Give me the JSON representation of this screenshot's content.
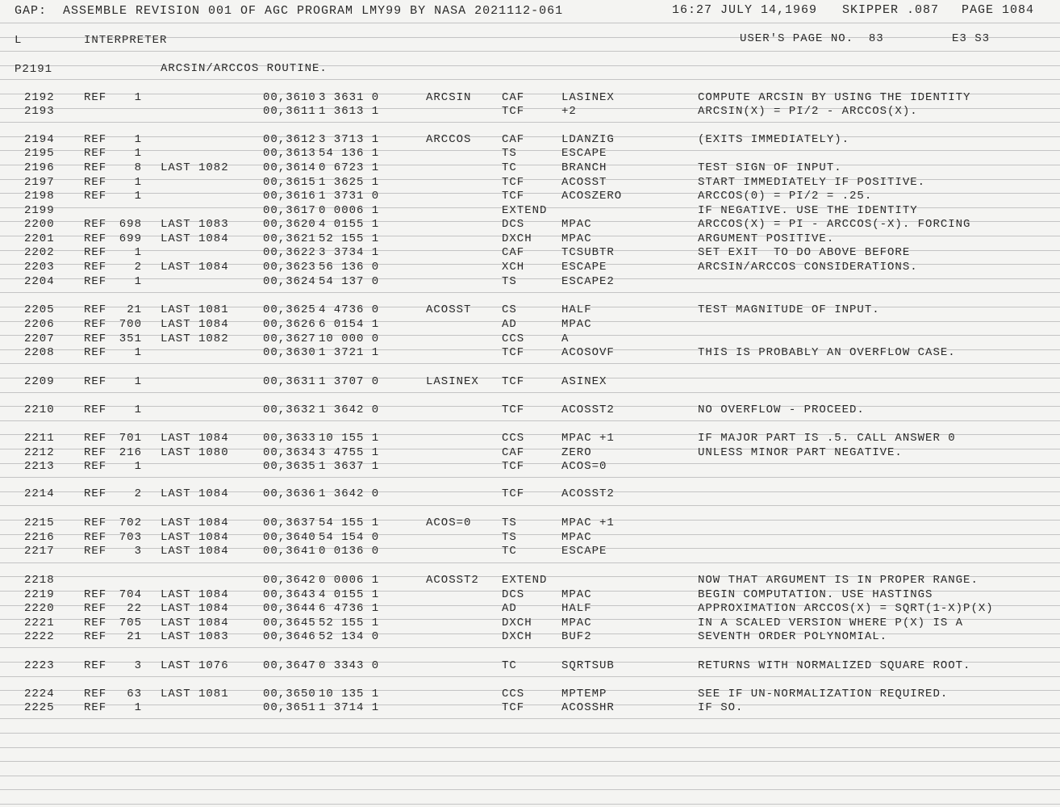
{
  "header": {
    "assembly": "GAP:  ASSEMBLE REVISION 001 OF AGC PROGRAM LMY99 BY NASA 2021112-061",
    "datetime": "16:27 JULY 14,1969",
    "skipper": "SKIPPER .087",
    "page": "PAGE 1084",
    "log_letter": "L",
    "section": "INTERPRETER",
    "users_page": "USER'S PAGE NO.  83",
    "e_s": "E3 S3",
    "page_line": "P2191",
    "routine_title": "ARCSIN/ARCCOS ROUTINE."
  },
  "rows": [
    [
      "2192",
      "REF",
      "1",
      "",
      "00,3610",
      "3 3631 0",
      "ARCSIN",
      "CAF",
      "LASINEX",
      "COMPUTE ARCSIN BY USING THE IDENTITY"
    ],
    [
      "2193",
      "",
      "",
      "",
      "00,3611",
      "1 3613 1",
      "",
      "TCF",
      "+2",
      "ARCSIN(X) = PI/2 - ARCCOS(X)."
    ],
    [
      "2194",
      "REF",
      "1",
      "",
      "00,3612",
      "3 3713 1",
      "ARCCOS",
      "CAF",
      "LDANZIG",
      "(EXITS IMMEDIATELY)."
    ],
    [
      "2195",
      "REF",
      "1",
      "",
      "00,3613",
      "54 136 1",
      "",
      "TS",
      "ESCAPE",
      ""
    ],
    [
      "2196",
      "REF",
      "8",
      "LAST 1082",
      "00,3614",
      "0 6723 1",
      "",
      "TC",
      "BRANCH",
      "TEST SIGN OF INPUT."
    ],
    [
      "2197",
      "REF",
      "1",
      "",
      "00,3615",
      "1 3625 1",
      "",
      "TCF",
      "ACOSST",
      "START IMMEDIATELY IF POSITIVE."
    ],
    [
      "2198",
      "REF",
      "1",
      "",
      "00,3616",
      "1 3731 0",
      "",
      "TCF",
      "ACOSZERO",
      "ARCCOS(0) = PI/2 = .25."
    ],
    [
      "2199",
      "",
      "",
      "",
      "00,3617",
      "0 0006 1",
      "",
      "EXTEND",
      "",
      "IF NEGATIVE. USE THE IDENTITY"
    ],
    [
      "2200",
      "REF",
      "698",
      "LAST 1083",
      "00,3620",
      "4 0155 1",
      "",
      "DCS",
      "MPAC",
      "ARCCOS(X) = PI - ARCCOS(-X). FORCING"
    ],
    [
      "2201",
      "REF",
      "699",
      "LAST 1084",
      "00,3621",
      "52 155 1",
      "",
      "DXCH",
      "MPAC",
      "ARGUMENT POSITIVE."
    ],
    [
      "2202",
      "REF",
      "1",
      "",
      "00,3622",
      "3 3734 1",
      "",
      "CAF",
      "TCSUBTR",
      "SET EXIT  TO DO ABOVE BEFORE"
    ],
    [
      "2203",
      "REF",
      "2",
      "LAST 1084",
      "00,3623",
      "56 136 0",
      "",
      "XCH",
      "ESCAPE",
      "ARCSIN/ARCCOS CONSIDERATIONS."
    ],
    [
      "2204",
      "REF",
      "1",
      "",
      "00,3624",
      "54 137 0",
      "",
      "TS",
      "ESCAPE2",
      ""
    ],
    [
      "2205",
      "REF",
      "21",
      "LAST 1081",
      "00,3625",
      "4 4736 0",
      "ACOSST",
      "CS",
      "HALF",
      "TEST MAGNITUDE OF INPUT."
    ],
    [
      "2206",
      "REF",
      "700",
      "LAST 1084",
      "00,3626",
      "6 0154 1",
      "",
      "AD",
      "MPAC",
      ""
    ],
    [
      "2207",
      "REF",
      "351",
      "LAST 1082",
      "00,3627",
      "10 000 0",
      "",
      "CCS",
      "A",
      ""
    ],
    [
      "2208",
      "REF",
      "1",
      "",
      "00,3630",
      "1 3721 1",
      "",
      "TCF",
      "ACOSOVF",
      "THIS IS PROBABLY AN OVERFLOW CASE."
    ],
    [
      "2209",
      "REF",
      "1",
      "",
      "00,3631",
      "1 3707 0",
      "LASINEX",
      "TCF",
      "ASINEX",
      ""
    ],
    [
      "2210",
      "REF",
      "1",
      "",
      "00,3632",
      "1 3642 0",
      "",
      "TCF",
      "ACOSST2",
      "NO OVERFLOW - PROCEED."
    ],
    [
      "2211",
      "REF",
      "701",
      "LAST 1084",
      "00,3633",
      "10 155 1",
      "",
      "CCS",
      "MPAC +1",
      "IF MAJOR PART IS .5. CALL ANSWER 0"
    ],
    [
      "2212",
      "REF",
      "216",
      "LAST 1080",
      "00,3634",
      "3 4755 1",
      "",
      "CAF",
      "ZERO",
      "UNLESS MINOR PART NEGATIVE."
    ],
    [
      "2213",
      "REF",
      "1",
      "",
      "00,3635",
      "1 3637 1",
      "",
      "TCF",
      "ACOS=0",
      ""
    ],
    [
      "2214",
      "REF",
      "2",
      "LAST 1084",
      "00,3636",
      "1 3642 0",
      "",
      "TCF",
      "ACOSST2",
      ""
    ],
    [
      "2215",
      "REF",
      "702",
      "LAST 1084",
      "00,3637",
      "54 155 1",
      "ACOS=0",
      "TS",
      "MPAC +1",
      ""
    ],
    [
      "2216",
      "REF",
      "703",
      "LAST 1084",
      "00,3640",
      "54 154 0",
      "",
      "TS",
      "MPAC",
      ""
    ],
    [
      "2217",
      "REF",
      "3",
      "LAST 1084",
      "00,3641",
      "0 0136 0",
      "",
      "TC",
      "ESCAPE",
      ""
    ],
    [
      "2218",
      "",
      "",
      "",
      "00,3642",
      "0 0006 1",
      "ACOSST2",
      "EXTEND",
      "",
      "NOW THAT ARGUMENT IS IN PROPER RANGE."
    ],
    [
      "2219",
      "REF",
      "704",
      "LAST 1084",
      "00,3643",
      "4 0155 1",
      "",
      "DCS",
      "MPAC",
      "BEGIN COMPUTATION. USE HASTINGS"
    ],
    [
      "2220",
      "REF",
      "22",
      "LAST 1084",
      "00,3644",
      "6 4736 1",
      "",
      "AD",
      "HALF",
      "APPROXIMATION ARCCOS(X) = SQRT(1-X)P(X)"
    ],
    [
      "2221",
      "REF",
      "705",
      "LAST 1084",
      "00,3645",
      "52 155 1",
      "",
      "DXCH",
      "MPAC",
      "IN A SCALED VERSION WHERE P(X) IS A"
    ],
    [
      "2222",
      "REF",
      "21",
      "LAST 1083",
      "00,3646",
      "52 134 0",
      "",
      "DXCH",
      "BUF2",
      "SEVENTH ORDER POLYNOMIAL."
    ],
    [
      "2223",
      "REF",
      "3",
      "LAST 1076",
      "00,3647",
      "0 3343 0",
      "",
      "TC",
      "SQRTSUB",
      "RETURNS WITH NORMALIZED SQUARE ROOT."
    ],
    [
      "2224",
      "REF",
      "63",
      "LAST 1081",
      "00,3650",
      "10 135 1",
      "",
      "CCS",
      "MPTEMP",
      "SEE IF UN-NORMALIZATION REQUIRED."
    ],
    [
      "2225",
      "REF",
      "1",
      "",
      "00,3651",
      "1 3714 1",
      "",
      "TCF",
      "ACOSSHR",
      "IF SO."
    ]
  ]
}
